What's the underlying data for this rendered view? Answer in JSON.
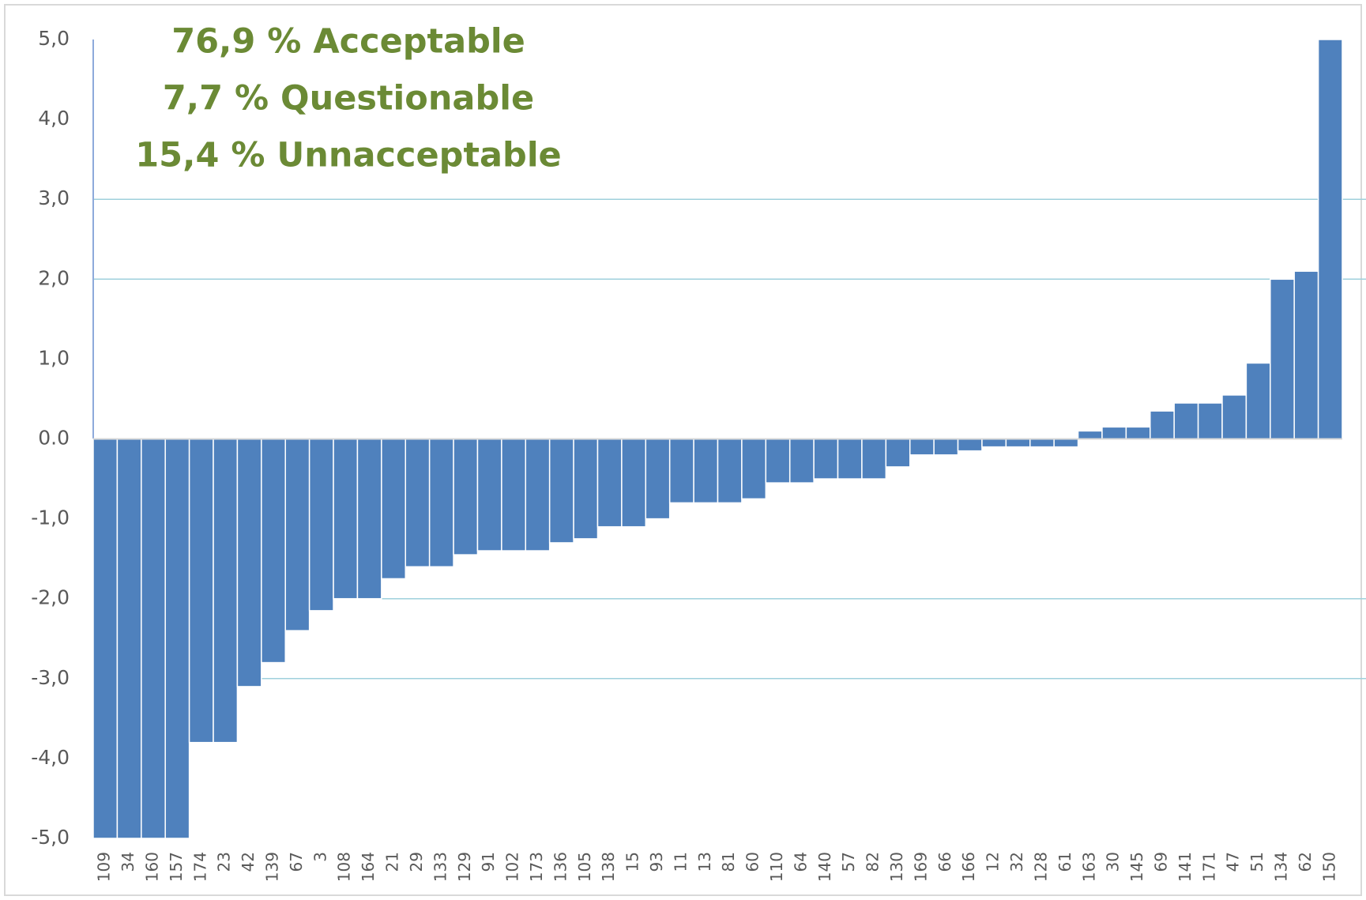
{
  "chart_data": {
    "type": "bar",
    "annotations": [
      "76,9 % Acceptable",
      "7,7 % Questionable",
      "15,4 % Unnacceptable"
    ],
    "categories": [
      "109",
      "34",
      "160",
      "157",
      "174",
      "23",
      "42",
      "139",
      "67",
      "3",
      "108",
      "164",
      "21",
      "29",
      "133",
      "129",
      "91",
      "102",
      "173",
      "136",
      "105",
      "138",
      "15",
      "93",
      "11",
      "13",
      "81",
      "60",
      "110",
      "64",
      "140",
      "57",
      "82",
      "130",
      "169",
      "66",
      "166",
      "12",
      "32",
      "128",
      "61",
      "163",
      "30",
      "145",
      "69",
      "141",
      "171",
      "47",
      "51",
      "134",
      "62",
      "150"
    ],
    "values": [
      -5,
      -5,
      -5,
      -5,
      -3.8,
      -3.8,
      -3.1,
      -2.8,
      -2.4,
      -2.15,
      -2.0,
      -2.0,
      -1.75,
      -1.6,
      -1.6,
      -1.45,
      -1.4,
      -1.4,
      -1.4,
      -1.3,
      -1.25,
      -1.1,
      -1.1,
      -1.0,
      -0.8,
      -0.8,
      -0.8,
      -0.75,
      -0.55,
      -0.55,
      -0.5,
      -0.5,
      -0.5,
      -0.35,
      -0.2,
      -0.2,
      -0.15,
      -0.1,
      -0.1,
      -0.1,
      -0.1,
      0.1,
      0.15,
      0.15,
      0.35,
      0.45,
      0.45,
      0.55,
      0.95,
      2.0,
      2.1,
      5.0
    ],
    "color": "#4f81bd",
    "ylim": [
      -5,
      5
    ],
    "yticks": [
      {
        "value": -5,
        "label": "-5,0"
      },
      {
        "value": -4,
        "label": "-4,0"
      },
      {
        "value": -3,
        "label": "-3,0"
      },
      {
        "value": -2,
        "label": "-2,0"
      },
      {
        "value": -1,
        "label": "-1,0"
      },
      {
        "value": 0,
        "label": "0.0"
      },
      {
        "value": 1,
        "label": "1,0"
      },
      {
        "value": 2,
        "label": "2,0"
      },
      {
        "value": 3,
        "label": "3,0"
      },
      {
        "value": 4,
        "label": "4,0"
      },
      {
        "value": 5,
        "label": "5,0"
      }
    ],
    "reference_lines": [
      -3,
      -2,
      2,
      3
    ],
    "reference_color": "#9fd0dc"
  }
}
